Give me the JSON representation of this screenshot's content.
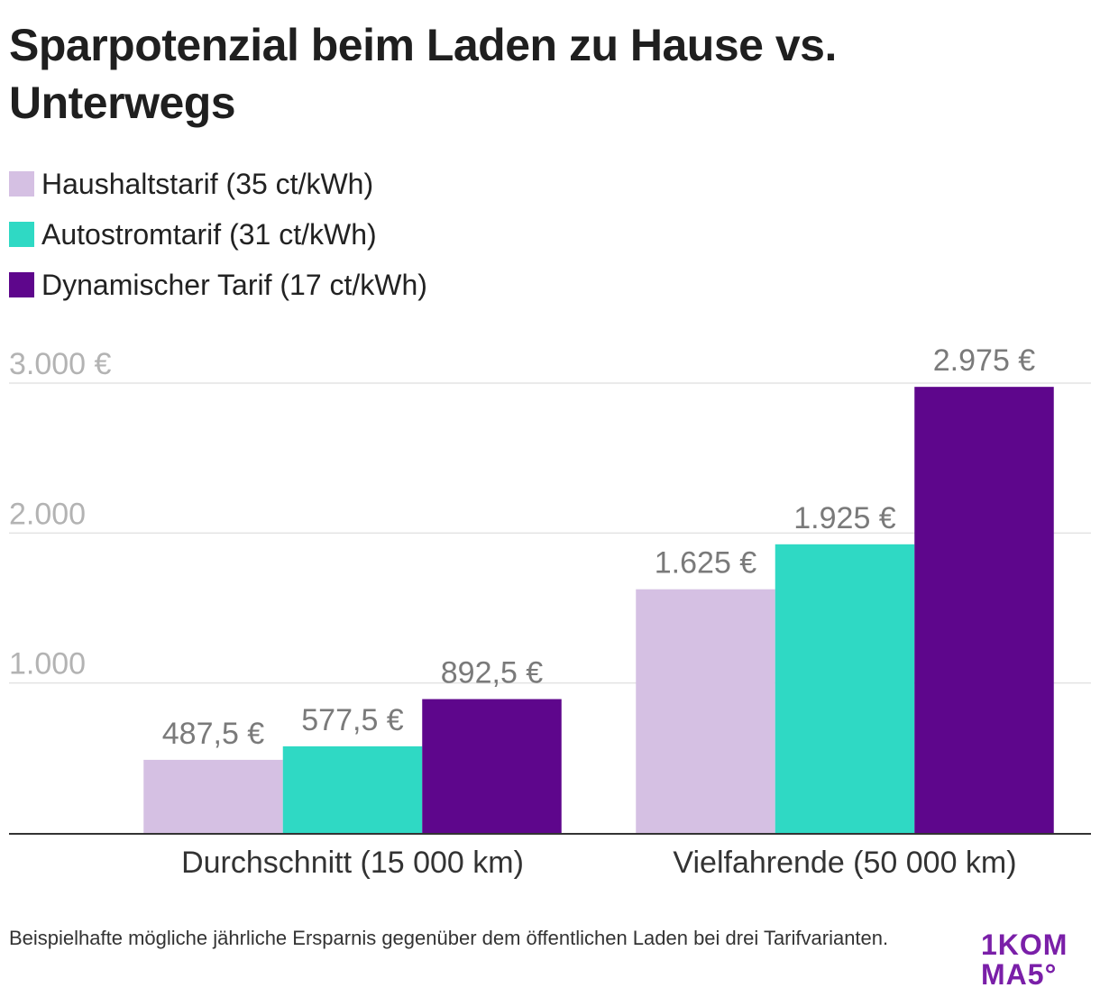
{
  "title": "Sparpotenzial beim Laden zu Hause vs. Unterwegs",
  "legend": [
    {
      "label": "Haushaltstarif (35 ct/kWh)",
      "color": "#d5c0e3"
    },
    {
      "label": "Autostromtarif (31 ct/kWh)",
      "color": "#2fd9c4"
    },
    {
      "label": "Dynamischer Tarif (17 ct/kWh)",
      "color": "#5e068c"
    }
  ],
  "chart_data": {
    "type": "bar",
    "title": "Sparpotenzial beim Laden zu Hause vs. Unterwegs",
    "categories": [
      "Durchschnitt (15 000 km)",
      "Vielfahrende (50 000 km)"
    ],
    "series": [
      {
        "name": "Haushaltstarif (35 ct/kWh)",
        "color": "#d5c0e3",
        "values": [
          487.5,
          1625
        ],
        "labels": [
          "487,5 €",
          "1.625 €"
        ]
      },
      {
        "name": "Autostromtarif (31 ct/kWh)",
        "color": "#2fd9c4",
        "values": [
          577.5,
          1925
        ],
        "labels": [
          "577,5 €",
          "1.925 €"
        ]
      },
      {
        "name": "Dynamischer Tarif (17 ct/kWh)",
        "color": "#5e068c",
        "values": [
          892.5,
          2975
        ],
        "labels": [
          "892,5 €",
          "2.975 €"
        ]
      }
    ],
    "yticks": [
      1000,
      2000,
      3000
    ],
    "ytick_labels": [
      "1.000",
      "2.000",
      "3.000 €"
    ],
    "ylim": [
      0,
      3000
    ],
    "xlabel": "",
    "ylabel": "",
    "grid": true,
    "legend_position": "top-left"
  },
  "footnote": "Beispielhafte mögliche jährliche Ersparnis gegenüber dem öffentlichen Laden bei drei Tarifvarianten.",
  "logo": {
    "line1": "1KOM",
    "line2": "MA5°"
  }
}
